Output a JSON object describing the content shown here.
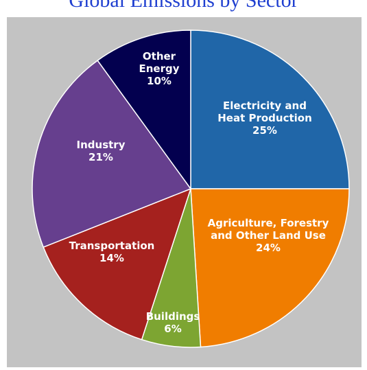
{
  "title": "Global Emissions by Sector",
  "chart_data": {
    "type": "pie",
    "title": "Global Emissions by Sector",
    "slices": [
      {
        "label": [
          "Electricity and",
          "Heat Production"
        ],
        "value": 25,
        "value_label": "25%",
        "color": "#2066a8"
      },
      {
        "label": [
          "Agriculture, Forestry",
          "and Other Land Use"
        ],
        "value": 24,
        "value_label": "24%",
        "color": "#f07d00"
      },
      {
        "label": [
          "Buildings"
        ],
        "value": 6,
        "value_label": "6%",
        "color": "#7da532"
      },
      {
        "label": [
          "Transportation"
        ],
        "value": 14,
        "value_label": "14%",
        "color": "#a5211e"
      },
      {
        "label": [
          "Industry"
        ],
        "value": 21,
        "value_label": "21%",
        "color": "#663f8e"
      },
      {
        "label": [
          "Other",
          "Energy"
        ],
        "value": 10,
        "value_label": "10%",
        "color": "#03004f"
      }
    ]
  }
}
